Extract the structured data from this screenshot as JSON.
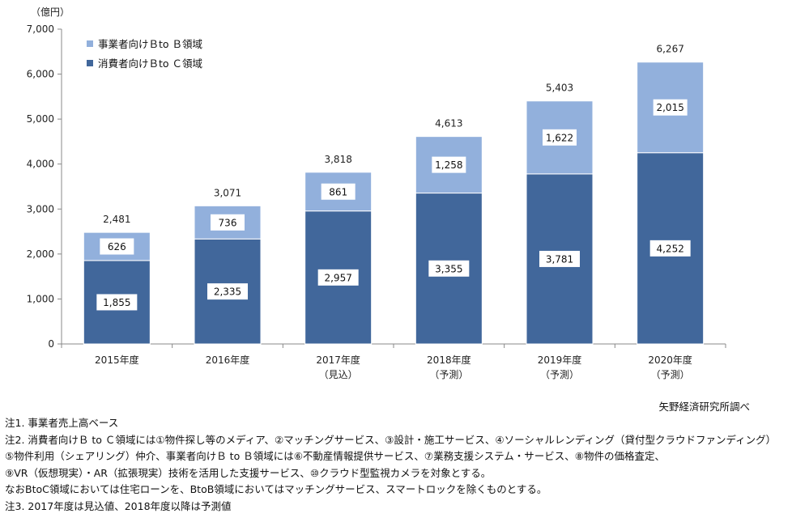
{
  "chart_data": {
    "type": "bar",
    "stacked": true,
    "unit": "（億円）",
    "categories": [
      "2015年度",
      "2016年度",
      "2017年度",
      "2018年度",
      "2019年度",
      "2020年度"
    ],
    "category_sublabels": [
      "",
      "",
      "（見込）",
      "（予測）",
      "（予測）",
      "（予測）"
    ],
    "series": [
      {
        "name": "消費者向けＢto Ｃ領域",
        "color": "#41679b",
        "values": [
          1855,
          2335,
          2957,
          3355,
          3781,
          4252
        ]
      },
      {
        "name": "事業者向けＢto Ｂ領域",
        "color": "#92b0dc",
        "values": [
          626,
          736,
          861,
          1258,
          1622,
          2015
        ]
      }
    ],
    "totals": [
      2481,
      3071,
      3818,
      4613,
      5403,
      6267
    ],
    "ylim": [
      0,
      7000
    ],
    "yticks": [
      0,
      1000,
      2000,
      3000,
      4000,
      5000,
      6000,
      7000
    ],
    "legend_position": "top-left",
    "grid": false
  },
  "source": "矢野経済研究所調べ",
  "notes": [
    "注1. 事業者売上高ベース",
    "注2. 消費者向けＢ to Ｃ領域には①物件探し等のメディア、②マッチングサービス、③設計・施工サービス、④ソーシャルレンディング（貸付型クラウドファンディング）",
    "⑤物件利用（シェアリング）仲介、事業者向けＢ to Ｂ領域には⑥不動産情報提供サービス、⑦業務支援システム・サービス、⑧物件の価格査定、",
    "⑨VR（仮想現実）・AR（拡張現実）技術を活用した支援サービス、⑩クラウド型監視カメラを対象とする。",
    "なおBtoC領域においては住宅ローンを、BtoB領域においてはマッチングサービス、スマートロックを除くものとする。",
    "注3. 2017年度は見込値、2018年度以降は予測値"
  ]
}
